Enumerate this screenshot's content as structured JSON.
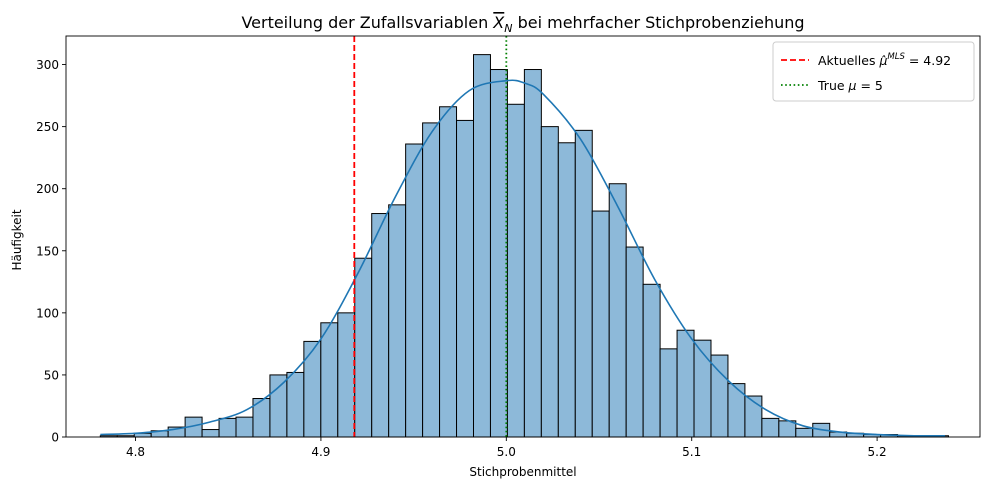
{
  "chart_data": {
    "type": "bar",
    "title_pre": "Verteilung der Zufallsvariablen ",
    "title_sym": "X",
    "title_sub": "N",
    "title_post": " bei mehrfacher Stichprobenziehung",
    "xlabel": "Stichprobenmittel",
    "ylabel": "Häufigkeit",
    "xlim": [
      4.7625,
      5.2555
    ],
    "ylim": [
      0,
      323
    ],
    "x_ticks": [
      4.8,
      4.9,
      5.0,
      5.1,
      5.2
    ],
    "x_tick_labels": [
      "4.8",
      "4.9",
      "5.0",
      "5.1",
      "5.2"
    ],
    "y_ticks": [
      0,
      50,
      100,
      150,
      200,
      250,
      300
    ],
    "y_tick_labels": [
      "0",
      "50",
      "100",
      "150",
      "200",
      "250",
      "300"
    ],
    "bin_start": 4.781,
    "bin_width": 0.00915,
    "counts": [
      1,
      1,
      3,
      5,
      8,
      16,
      6,
      15,
      16,
      31,
      50,
      52,
      77,
      92,
      100,
      144,
      180,
      187,
      236,
      253,
      266,
      255,
      308,
      296,
      268,
      296,
      250,
      237,
      247,
      182,
      204,
      153,
      123,
      71,
      86,
      78,
      66,
      43,
      33,
      15,
      13,
      7,
      11,
      4,
      3,
      2,
      2,
      1,
      1,
      1
    ],
    "kde": {
      "x": [
        4.781,
        4.8,
        4.82,
        4.84,
        4.86,
        4.88,
        4.9,
        4.92,
        4.94,
        4.96,
        4.98,
        5.0,
        5.01,
        5.02,
        5.04,
        5.06,
        5.08,
        5.1,
        5.12,
        5.14,
        5.16,
        5.18,
        5.2,
        5.22,
        5.2366
      ],
      "y": [
        2,
        3,
        6,
        12,
        22,
        44,
        79,
        132,
        193,
        246,
        279,
        287,
        285,
        276,
        240,
        186,
        127,
        79,
        45,
        22,
        9,
        4,
        2,
        1,
        1
      ],
      "color": "#1f77b4"
    },
    "bar_color": "#8db9d9",
    "bar_edge_color": "#000000",
    "lines": [
      {
        "x": 4.918,
        "style": "dashed",
        "color": "#ff0000"
      },
      {
        "x": 5.0,
        "style": "dotted",
        "color": "#008000"
      }
    ],
    "legend": {
      "placement": "top-right",
      "entries": [
        {
          "style": "dashed",
          "color": "#ff0000",
          "label_pre": "Aktuelles ",
          "label_sym": "μ̂",
          "label_sup": "MLS",
          "label_post": " = 4.92"
        },
        {
          "style": "dotted",
          "color": "#008000",
          "label_pre": "True ",
          "label_sym": "μ",
          "label_post": " = 5"
        }
      ]
    }
  }
}
